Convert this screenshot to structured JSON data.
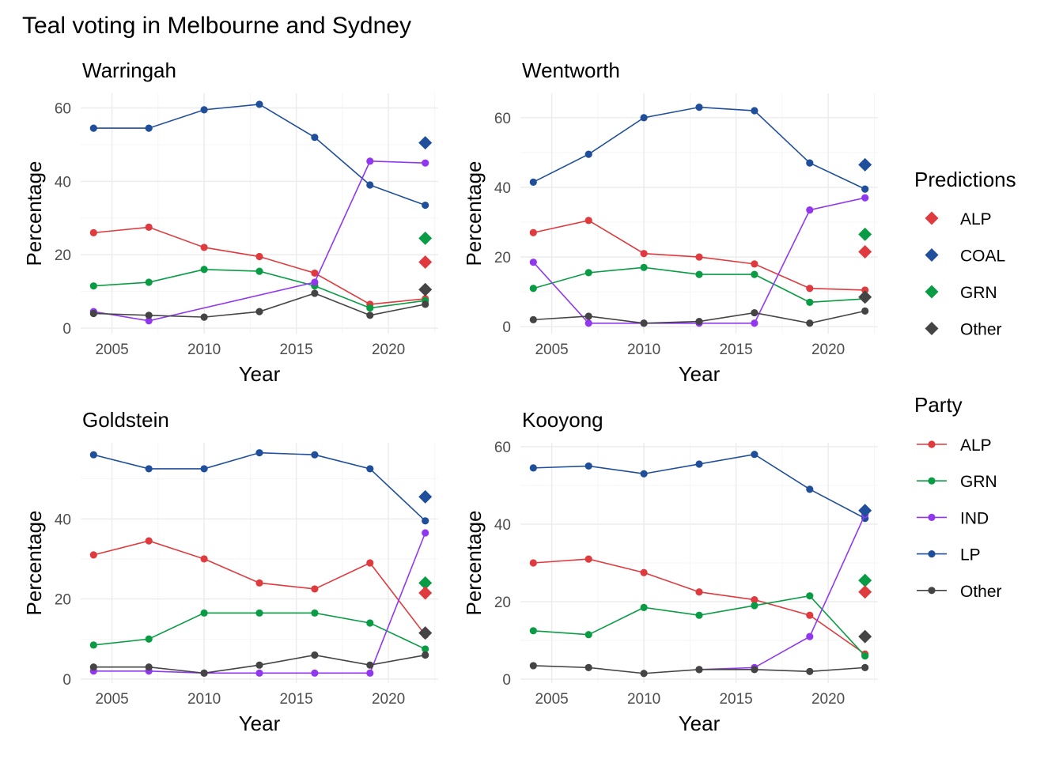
{
  "chart_data": {
    "type": "line",
    "title": "Teal voting in Melbourne and Sydney",
    "xlabel": "Year",
    "ylabel": "Percentage",
    "colors": {
      "ALP": "#df3a3d",
      "COAL": "#1f4e9b",
      "LP": "#1f4e9b",
      "GRN": "#0a9c45",
      "IND": "#9138ee",
      "Other": "#444444"
    },
    "legends": [
      {
        "title": "Predictions",
        "marker": "diamond",
        "entries": [
          "ALP",
          "COAL",
          "GRN",
          "Other"
        ]
      },
      {
        "title": "Party",
        "marker": "line-point",
        "entries": [
          "ALP",
          "GRN",
          "IND",
          "LP",
          "Other"
        ]
      }
    ],
    "panels": [
      {
        "name": "Warringah",
        "xlim": [
          2003.3,
          2022.7
        ],
        "ylim": [
          -1.5,
          64
        ],
        "xticks": [
          2005,
          2010,
          2015,
          2020
        ],
        "yticks": [
          0,
          20,
          40,
          60
        ],
        "series": [
          {
            "party": "LP",
            "x": [
              2004,
              2007,
              2010,
              2013,
              2016,
              2019,
              2022
            ],
            "y": [
              54.5,
              54.5,
              59.5,
              61,
              52,
              39,
              33.5
            ]
          },
          {
            "party": "ALP",
            "x": [
              2004,
              2007,
              2010,
              2013,
              2016,
              2019,
              2022
            ],
            "y": [
              26,
              27.5,
              22,
              19.5,
              15,
              6.5,
              8
            ]
          },
          {
            "party": "GRN",
            "x": [
              2004,
              2007,
              2010,
              2013,
              2016,
              2019,
              2022
            ],
            "y": [
              11.5,
              12.5,
              16,
              15.5,
              11.5,
              5.5,
              7.5
            ]
          },
          {
            "party": "IND",
            "x": [
              2004,
              2007,
              2016,
              2019,
              2022
            ],
            "y": [
              4.5,
              2,
              12.5,
              45.5,
              45
            ]
          },
          {
            "party": "Other",
            "x": [
              2004,
              2007,
              2010,
              2013,
              2016,
              2019,
              2022
            ],
            "y": [
              4,
              3.5,
              3,
              4.5,
              9.5,
              3.5,
              6.5
            ]
          }
        ],
        "predictions": [
          {
            "party": "COAL",
            "x": 2022,
            "y": 50.5
          },
          {
            "party": "GRN",
            "x": 2022,
            "y": 24.5
          },
          {
            "party": "ALP",
            "x": 2022,
            "y": 18
          },
          {
            "party": "Other",
            "x": 2022,
            "y": 10.5
          }
        ]
      },
      {
        "name": "Wentworth",
        "xlim": [
          2003.3,
          2022.7
        ],
        "ylim": [
          -2,
          67
        ],
        "xticks": [
          2005,
          2010,
          2015,
          2020
        ],
        "yticks": [
          0,
          20,
          40,
          60
        ],
        "series": [
          {
            "party": "LP",
            "x": [
              2004,
              2007,
              2010,
              2013,
              2016,
              2019,
              2022
            ],
            "y": [
              41.5,
              49.5,
              60,
              63,
              62,
              47,
              39.5
            ]
          },
          {
            "party": "ALP",
            "x": [
              2004,
              2007,
              2010,
              2013,
              2016,
              2019,
              2022
            ],
            "y": [
              27,
              30.5,
              21,
              20,
              18,
              11,
              10.5
            ]
          },
          {
            "party": "GRN",
            "x": [
              2004,
              2007,
              2010,
              2013,
              2016,
              2019,
              2022
            ],
            "y": [
              11,
              15.5,
              17,
              15,
              15,
              7,
              8
            ]
          },
          {
            "party": "IND",
            "x": [
              2004,
              2007,
              2010,
              2013,
              2016,
              2019,
              2022
            ],
            "y": [
              18.5,
              1,
              1,
              1,
              1,
              33.5,
              37
            ]
          },
          {
            "party": "Other",
            "x": [
              2004,
              2007,
              2010,
              2013,
              2016,
              2019,
              2022
            ],
            "y": [
              2,
              3,
              1,
              1.5,
              4,
              1,
              4.5
            ]
          }
        ],
        "predictions": [
          {
            "party": "COAL",
            "x": 2022,
            "y": 46.5
          },
          {
            "party": "GRN",
            "x": 2022,
            "y": 26.5
          },
          {
            "party": "ALP",
            "x": 2022,
            "y": 21.5
          },
          {
            "party": "Other",
            "x": 2022,
            "y": 8.5
          }
        ]
      },
      {
        "name": "Goldstein",
        "xlim": [
          2003.3,
          2022.7
        ],
        "ylim": [
          -1,
          59
        ],
        "xticks": [
          2005,
          2010,
          2015,
          2020
        ],
        "yticks": [
          0,
          20,
          40
        ],
        "series": [
          {
            "party": "LP",
            "x": [
              2004,
              2007,
              2010,
              2013,
              2016,
              2019,
              2022
            ],
            "y": [
              56,
              52.5,
              52.5,
              56.5,
              56,
              52.5,
              39.5
            ]
          },
          {
            "party": "ALP",
            "x": [
              2004,
              2007,
              2010,
              2013,
              2016,
              2019,
              2022
            ],
            "y": [
              31,
              34.5,
              30,
              24,
              22.5,
              29,
              11
            ]
          },
          {
            "party": "GRN",
            "x": [
              2004,
              2007,
              2010,
              2013,
              2016,
              2019,
              2022
            ],
            "y": [
              8.5,
              10,
              16.5,
              16.5,
              16.5,
              14,
              7.5
            ]
          },
          {
            "party": "IND",
            "x": [
              2004,
              2007,
              2010,
              2013,
              2016,
              2019,
              2022
            ],
            "y": [
              2,
              2,
              1.5,
              1.5,
              1.5,
              1.5,
              36.5
            ]
          },
          {
            "party": "Other",
            "x": [
              2004,
              2007,
              2010,
              2013,
              2016,
              2019,
              2022
            ],
            "y": [
              3,
              3,
              1.5,
              3.5,
              6,
              3.5,
              6
            ]
          }
        ],
        "predictions": [
          {
            "party": "COAL",
            "x": 2022,
            "y": 45.5
          },
          {
            "party": "GRN",
            "x": 2022,
            "y": 24
          },
          {
            "party": "ALP",
            "x": 2022,
            "y": 21.5
          },
          {
            "party": "Other",
            "x": 2022,
            "y": 11.5
          }
        ]
      },
      {
        "name": "Kooyong",
        "xlim": [
          2003.3,
          2022.7
        ],
        "ylim": [
          -1,
          61
        ],
        "xticks": [
          2005,
          2010,
          2015,
          2020
        ],
        "yticks": [
          0,
          20,
          40,
          60
        ],
        "series": [
          {
            "party": "LP",
            "x": [
              2004,
              2007,
              2010,
              2013,
              2016,
              2019,
              2022
            ],
            "y": [
              54.5,
              55,
              53,
              55.5,
              58,
              49,
              41.5
            ]
          },
          {
            "party": "ALP",
            "x": [
              2004,
              2007,
              2010,
              2013,
              2016,
              2019,
              2022
            ],
            "y": [
              30,
              31,
              27.5,
              22.5,
              20.5,
              16.5,
              6.5
            ]
          },
          {
            "party": "GRN",
            "x": [
              2004,
              2007,
              2010,
              2013,
              2016,
              2019,
              2022
            ],
            "y": [
              12.5,
              11.5,
              18.5,
              16.5,
              19,
              21.5,
              6
            ]
          },
          {
            "party": "IND",
            "x": [
              2013,
              2016,
              2019,
              2022
            ],
            "y": [
              2.5,
              3,
              11,
              42.5
            ]
          },
          {
            "party": "Other",
            "x": [
              2004,
              2007,
              2010,
              2013,
              2016,
              2019,
              2022
            ],
            "y": [
              3.5,
              3,
              1.5,
              2.5,
              2.5,
              2,
              3
            ]
          }
        ],
        "predictions": [
          {
            "party": "COAL",
            "x": 2022,
            "y": 43.5
          },
          {
            "party": "GRN",
            "x": 2022,
            "y": 25.5
          },
          {
            "party": "ALP",
            "x": 2022,
            "y": 22.5
          },
          {
            "party": "Other",
            "x": 2022,
            "y": 11
          }
        ]
      }
    ]
  }
}
